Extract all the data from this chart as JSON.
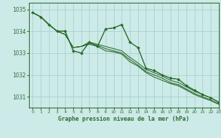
{
  "title": "Graphe pression niveau de la mer (hPa)",
  "background_color": "#cceae8",
  "grid_color": "#aad4d0",
  "line_color": "#2d6b2d",
  "xlim": [
    -0.5,
    23
  ],
  "ylim": [
    1030.5,
    1035.3
  ],
  "yticks": [
    1031,
    1032,
    1033,
    1034,
    1035
  ],
  "xticks": [
    0,
    1,
    2,
    3,
    4,
    5,
    6,
    7,
    8,
    9,
    10,
    11,
    12,
    13,
    14,
    15,
    16,
    17,
    18,
    19,
    20,
    21,
    22,
    23
  ],
  "series1_y": [
    1034.85,
    1034.65,
    1034.3,
    1034.0,
    1034.0,
    1033.1,
    1033.0,
    1033.5,
    1033.3,
    1034.1,
    1034.15,
    1034.3,
    1033.5,
    1033.25,
    1032.3,
    1032.2,
    1032.0,
    1031.85,
    1031.8,
    1031.5,
    1031.3,
    1031.1,
    1030.95,
    1030.75
  ],
  "series2_y": [
    1034.85,
    1034.65,
    1034.3,
    1034.0,
    1033.85,
    1033.25,
    1033.3,
    1033.5,
    1033.4,
    1033.3,
    1033.2,
    1033.1,
    1032.8,
    1032.55,
    1032.25,
    1032.1,
    1031.95,
    1031.75,
    1031.65,
    1031.45,
    1031.25,
    1031.1,
    1030.95,
    1030.75
  ],
  "series3_y": [
    1034.85,
    1034.65,
    1034.3,
    1034.0,
    1033.85,
    1033.25,
    1033.3,
    1033.45,
    1033.35,
    1033.2,
    1033.1,
    1033.0,
    1032.7,
    1032.45,
    1032.15,
    1032.0,
    1031.85,
    1031.65,
    1031.55,
    1031.35,
    1031.15,
    1031.0,
    1030.85,
    1030.68
  ],
  "series4_y": [
    1034.85,
    1034.65,
    1034.3,
    1034.0,
    1033.85,
    1033.25,
    1033.3,
    1033.4,
    1033.3,
    1033.1,
    1033.05,
    1032.95,
    1032.6,
    1032.4,
    1032.1,
    1031.9,
    1031.75,
    1031.6,
    1031.5,
    1031.3,
    1031.1,
    1030.95,
    1030.82,
    1030.65
  ],
  "marker_x": [
    0,
    1,
    2,
    3,
    4,
    5,
    6,
    7,
    8,
    9,
    10,
    11,
    12,
    13,
    14,
    15,
    16,
    17,
    18,
    19,
    20,
    21,
    22,
    23
  ],
  "marker_y": [
    1034.85,
    1034.65,
    1034.3,
    1034.0,
    1034.0,
    1033.1,
    1033.0,
    1033.5,
    1033.3,
    1034.1,
    1034.15,
    1034.3,
    1033.5,
    1033.25,
    1032.3,
    1032.2,
    1032.0,
    1031.85,
    1031.8,
    1031.5,
    1031.3,
    1031.1,
    1030.95,
    1030.75
  ]
}
